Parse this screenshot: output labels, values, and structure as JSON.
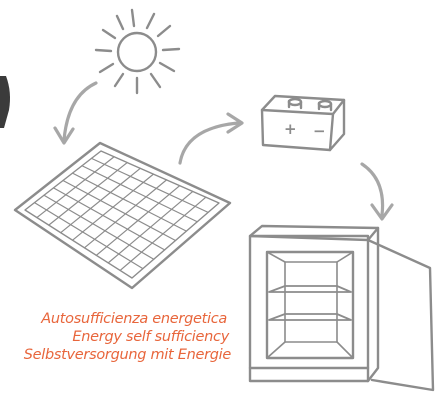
{
  "colors": {
    "stroke": "#8c8c8c",
    "arrow": "#a7a7a7",
    "accent_text": "#e8663c",
    "background": "#ffffff"
  },
  "icons": [
    "sun-icon",
    "solar-panel-icon",
    "battery-icon",
    "refrigerator-icon",
    "arrow-icon"
  ],
  "battery": {
    "plus_symbol": "+",
    "minus_symbol": "−"
  },
  "caption": {
    "line_it": "Autosufficienza energetica",
    "line_en": "Energy self sufficiency",
    "line_de": "Selbstversorgung mit Energie"
  }
}
